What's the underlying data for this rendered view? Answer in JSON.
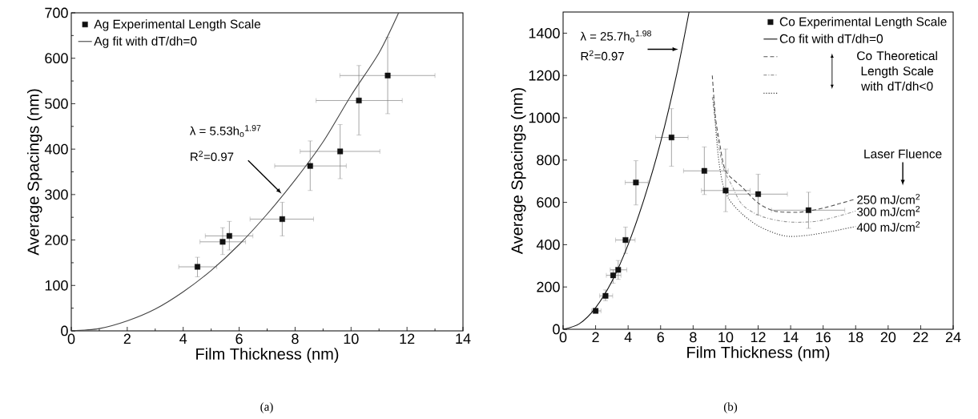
{
  "chart_data": [
    {
      "type": "scatter",
      "xlabel": "Film Thickness (nm)",
      "ylabel": "Average Spacings (nm)",
      "xlim": [
        0,
        14
      ],
      "ylim": [
        0,
        700
      ],
      "xticks": [
        0,
        2,
        4,
        6,
        8,
        10,
        12,
        14
      ],
      "yticks": [
        0,
        100,
        200,
        300,
        400,
        500,
        600,
        700
      ],
      "legend": "top left",
      "grid": false,
      "annotations": [
        "λ = 5.53h$_{o}$$^{1.97}$",
        {
          "text": "R$^{2}$=0.97",
          "x": 7.52,
          "y": 302
        },
        "(a)"
      ],
      "series": [
        {
          "name": "Ag Experimental Length Scale",
          "type": "scatter",
          "marker": "square",
          "color": "#111111",
          "x": [
            4.51,
            5.41,
            5.65,
            7.54,
            8.54,
            9.61,
            10.28,
            11.31
          ],
          "values": [
            141,
            196,
            209,
            246,
            363,
            395,
            507,
            562
          ],
          "errors": [
            [
              119,
              162
            ],
            [
              168,
              227
            ],
            [
              178,
              241
            ],
            [
              209,
              283
            ],
            [
              309,
              418
            ],
            [
              335,
              454
            ],
            [
              431,
              584
            ],
            [
              478,
              646
            ]
          ],
          "xerrors": [
            [
              3.84,
              5.2
            ],
            [
              4.6,
              6.23
            ],
            [
              4.79,
              6.49
            ],
            [
              6.39,
              8.66
            ],
            [
              7.27,
              9.83
            ],
            [
              8.18,
              11.03
            ],
            [
              8.75,
              11.83
            ],
            [
              9.6,
              13.0
            ]
          ]
        },
        {
          "name": "Ag fit with dT/dh=0",
          "type": "line",
          "line_style": "solid",
          "color": "#444444",
          "x": [
            0,
            1,
            2,
            3,
            4,
            5,
            6,
            7,
            8,
            9,
            10,
            11,
            11.7
          ],
          "values": [
            0,
            5,
            22,
            48,
            86,
            133,
            190,
            257,
            332,
            416,
            518,
            612,
            700
          ]
        }
      ]
    },
    {
      "type": "scatter",
      "xlabel": "Film Thickness (nm)",
      "ylabel": "Average Spacings (nm)",
      "xlim": [
        0,
        24
      ],
      "ylim": [
        0,
        1500
      ],
      "xticks": [
        0,
        2,
        4,
        6,
        8,
        10,
        12,
        14,
        16,
        18,
        20,
        22,
        24
      ],
      "yticks": [
        0,
        200,
        400,
        600,
        800,
        1000,
        1200,
        1400
      ],
      "legend": "top right",
      "grid": false,
      "annotations": [
        {
          "text": "λ = 25.7h$_{o}$$^{1.98}$",
          "x": 7.08,
          "y": 1324
        },
        "R$^{2}$=0.97",
        "Co Theoretical Length Scale with dT/dh<0",
        "Laser Fluence",
        "(b)"
      ],
      "series": [
        {
          "name": "Co Experimental Length Scale",
          "type": "scatter",
          "marker": "square",
          "color": "#111111",
          "x": [
            2.0,
            2.61,
            3.08,
            3.39,
            3.84,
            4.48,
            6.67,
            8.69,
            10.0,
            12.0,
            15.1
          ],
          "values": [
            87,
            158,
            255,
            281,
            422,
            694,
            907,
            749,
            656,
            639,
            563
          ],
          "errors": [
            [
              78,
              97
            ],
            [
              135,
              186
            ],
            [
              218,
              281
            ],
            [
              236,
              325
            ],
            [
              359,
              483
            ],
            [
              588,
              797
            ],
            [
              771,
              1043
            ],
            [
              637,
              862
            ],
            [
              556,
              852
            ],
            [
              540,
              733
            ],
            [
              477,
              648
            ]
          ],
          "xerrors": [
            [
              1.75,
              2.33
            ],
            [
              2.25,
              3.05
            ],
            [
              2.66,
              3.56
            ],
            [
              2.9,
              3.92
            ],
            [
              3.23,
              4.43
            ],
            [
              3.82,
              5.23
            ],
            [
              5.69,
              7.69
            ],
            [
              7.41,
              10.16
            ],
            [
              8.51,
              11.51
            ],
            [
              10.16,
              13.8
            ],
            [
              12.82,
              17.33
            ]
          ]
        },
        {
          "name": "Co fit with dT/dh=0",
          "type": "line",
          "line_style": "solid",
          "color": "#111111",
          "x": [
            0,
            1,
            2,
            3,
            4,
            5,
            6,
            7,
            7.75
          ],
          "values": [
            0,
            26,
            102,
            226,
            400,
            620,
            885,
            1210,
            1500
          ]
        },
        {
          "name": "250 mJ/cm$^{2}$",
          "type": "line",
          "line_style": "dashed",
          "color": "#555555",
          "x": [
            9.18,
            9.38,
            9.62,
            10,
            11,
            12,
            13,
            14.3,
            15.1,
            16.26,
            18
          ],
          "values": [
            1200,
            1000,
            886,
            749,
            673,
            597,
            559,
            553,
            559,
            578,
            616
          ]
        },
        {
          "name": "300 mJ/cm$^{2}$",
          "type": "line",
          "line_style": "dashdot",
          "color": "#999999",
          "x": [
            9.18,
            9.54,
            9.87,
            10.36,
            11,
            12,
            13.15,
            14.3,
            15.6,
            16.9,
            18
          ],
          "values": [
            1097,
            886,
            760,
            683,
            591,
            540,
            515,
            506,
            511,
            534,
            559
          ]
        },
        {
          "name": "400 mJ/cm$^{2}$",
          "type": "line",
          "line_style": "dotted",
          "color": "#333333",
          "x": [
            9.25,
            9.5,
            9.79,
            10.2,
            11,
            12,
            13.15,
            13.97,
            15.1,
            16.6,
            18
          ],
          "values": [
            1097,
            850,
            698,
            616,
            546,
            489,
            451,
            439,
            445,
            464,
            486
          ]
        }
      ]
    }
  ]
}
